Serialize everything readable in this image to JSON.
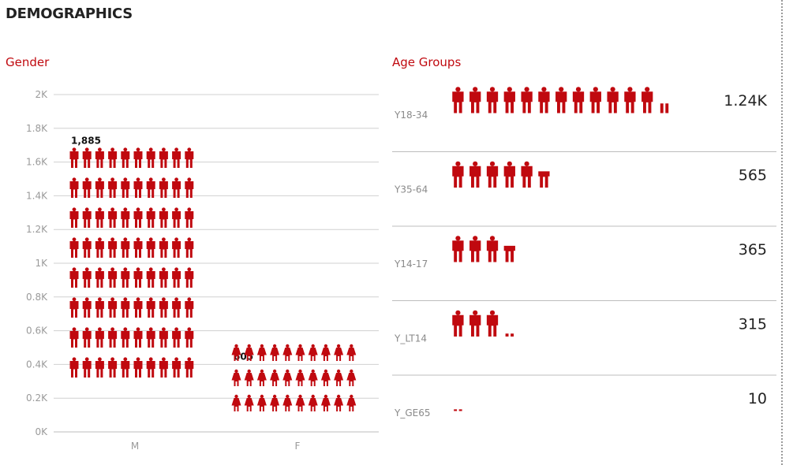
{
  "page": {
    "title": "DEMOGRAPHICS"
  },
  "colors": {
    "accent": "#c0090f",
    "grid": "#d0d0d0",
    "text_muted": "#9a9a9a"
  },
  "chart_data": [
    {
      "type": "bar",
      "subtitle": "Gender",
      "categories": [
        "M",
        "F"
      ],
      "values": [
        1885,
        605
      ],
      "data_labels": [
        "1,885",
        "605"
      ],
      "ylim": [
        0,
        2000
      ],
      "yticks": [
        0,
        200,
        400,
        600,
        800,
        1000,
        1200,
        1400,
        1600,
        1800,
        2000
      ],
      "ytick_labels": [
        "0K",
        "0.2K",
        "0.4K",
        "0.6K",
        "0.8K",
        "1K",
        "1.2K",
        "1.4K",
        "1.6K",
        "1.8K",
        "2K"
      ],
      "grid": true,
      "markers": [
        "male-person-icon",
        "female-person-icon"
      ]
    },
    {
      "type": "bar",
      "subtitle": "Age Groups",
      "orientation": "horizontal",
      "categories": [
        "Y18-34",
        "Y35-64",
        "Y14-17",
        "Y_LT14",
        "Y_GE65"
      ],
      "values": [
        1240,
        565,
        365,
        315,
        10
      ],
      "data_labels": [
        "1.24K",
        "565",
        "365",
        "315",
        "10"
      ],
      "marker": "person-icon"
    }
  ]
}
